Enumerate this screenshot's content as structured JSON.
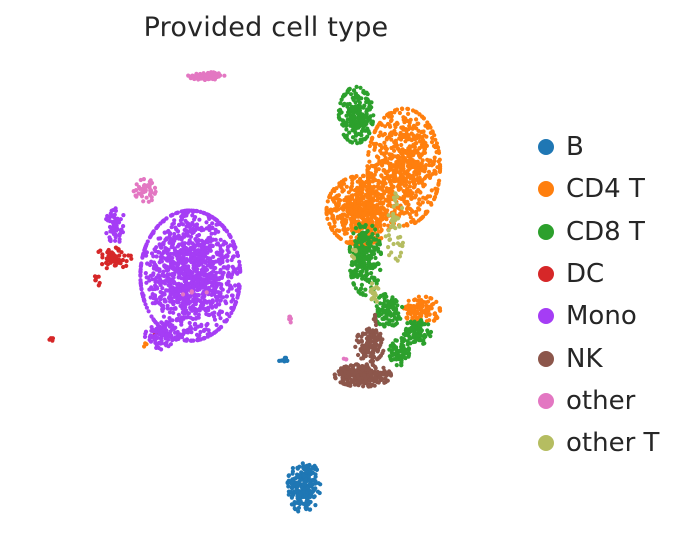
{
  "chart_data": {
    "type": "scatter",
    "title": "Provided cell type",
    "xlabel": "",
    "ylabel": "",
    "grid": false,
    "axes_visible": false,
    "legend_position": "right",
    "xlim": [
      0,
      100
    ],
    "ylim": [
      0,
      100
    ],
    "series": [
      {
        "name": "B",
        "color": "#1f77b4",
        "clusters": [
          {
            "cx": 59.0,
            "cy": 5.5,
            "rx": 3.6,
            "ry": 6.2,
            "n": 220
          },
          {
            "cx": 54.5,
            "cy": 34.5,
            "rx": 1.6,
            "ry": 0.6,
            "n": 10
          }
        ]
      },
      {
        "name": "CD4 T",
        "color": "#ff7f0e",
        "clusters": [
          {
            "cx": 81.0,
            "cy": 79.0,
            "rx": 8.0,
            "ry": 13.5,
            "n": 700
          },
          {
            "cx": 71.5,
            "cy": 69.0,
            "rx": 7.5,
            "ry": 8.0,
            "n": 560
          },
          {
            "cx": 85.0,
            "cy": 46.0,
            "rx": 4.0,
            "ry": 3.2,
            "n": 120
          },
          {
            "cx": 24.0,
            "cy": 38.0,
            "rx": 0.6,
            "ry": 0.6,
            "n": 3
          }
        ]
      },
      {
        "name": "CD8 T",
        "color": "#2ca02c",
        "clusters": [
          {
            "cx": 70.5,
            "cy": 91.0,
            "rx": 3.8,
            "ry": 6.5,
            "n": 220
          },
          {
            "cx": 72.5,
            "cy": 58.0,
            "rx": 3.5,
            "ry": 8.5,
            "n": 240
          },
          {
            "cx": 77.5,
            "cy": 46.0,
            "rx": 3.2,
            "ry": 3.8,
            "n": 100
          },
          {
            "cx": 84.0,
            "cy": 41.0,
            "rx": 3.0,
            "ry": 3.0,
            "n": 100
          },
          {
            "cx": 80.0,
            "cy": 36.5,
            "rx": 2.2,
            "ry": 3.2,
            "n": 80
          }
        ]
      },
      {
        "name": "DC",
        "color": "#d62728",
        "clusters": [
          {
            "cx": 17.0,
            "cy": 58.0,
            "rx": 4.0,
            "ry": 2.5,
            "n": 70
          },
          {
            "cx": 13.5,
            "cy": 53.0,
            "rx": 0.6,
            "ry": 1.5,
            "n": 8
          },
          {
            "cx": 3.5,
            "cy": 39.5,
            "rx": 0.6,
            "ry": 0.6,
            "n": 6
          },
          {
            "cx": 26.5,
            "cy": 40.5,
            "rx": 0.8,
            "ry": 1.0,
            "n": 6
          }
        ]
      },
      {
        "name": "Mono",
        "color": "#a53df5",
        "clusters": [
          {
            "cx": 34.0,
            "cy": 54.0,
            "rx": 11.0,
            "ry": 15.0,
            "n": 1300
          },
          {
            "cx": 17.5,
            "cy": 65.5,
            "rx": 2.2,
            "ry": 4.0,
            "n": 60
          },
          {
            "cx": 27.5,
            "cy": 40.0,
            "rx": 3.5,
            "ry": 3.0,
            "n": 80
          },
          {
            "cx": 38.5,
            "cy": 100.0,
            "rx": 0.6,
            "ry": 0.8,
            "n": 5
          }
        ]
      },
      {
        "name": "NK",
        "color": "#8c564b",
        "clusters": [
          {
            "cx": 72.0,
            "cy": 31.0,
            "rx": 6.2,
            "ry": 2.6,
            "n": 260
          },
          {
            "cx": 73.5,
            "cy": 38.0,
            "rx": 3.2,
            "ry": 3.8,
            "n": 130
          },
          {
            "cx": 74.5,
            "cy": 43.5,
            "rx": 0.6,
            "ry": 1.5,
            "n": 6
          }
        ]
      },
      {
        "name": "other",
        "color": "#e377c2",
        "clusters": [
          {
            "cx": 37.5,
            "cy": 100.0,
            "rx": 4.0,
            "ry": 0.9,
            "n": 70
          },
          {
            "cx": 24.5,
            "cy": 74.0,
            "rx": 3.0,
            "ry": 3.0,
            "n": 45
          },
          {
            "cx": 56.0,
            "cy": 44.0,
            "rx": 0.5,
            "ry": 0.8,
            "n": 6
          },
          {
            "cx": 35.0,
            "cy": 52.0,
            "rx": 3.5,
            "ry": 3.5,
            "n": 4
          },
          {
            "cx": 68.0,
            "cy": 34.5,
            "rx": 0.5,
            "ry": 0.5,
            "n": 3
          }
        ]
      },
      {
        "name": "other T",
        "color": "#b5bd61",
        "clusters": [
          {
            "cx": 79.0,
            "cy": 65.0,
            "rx": 2.0,
            "ry": 8.0,
            "n": 45
          },
          {
            "cx": 74.5,
            "cy": 50.0,
            "rx": 1.0,
            "ry": 2.5,
            "n": 18
          },
          {
            "cx": 70.0,
            "cy": 59.0,
            "rx": 0.8,
            "ry": 1.0,
            "n": 6
          }
        ]
      }
    ]
  }
}
